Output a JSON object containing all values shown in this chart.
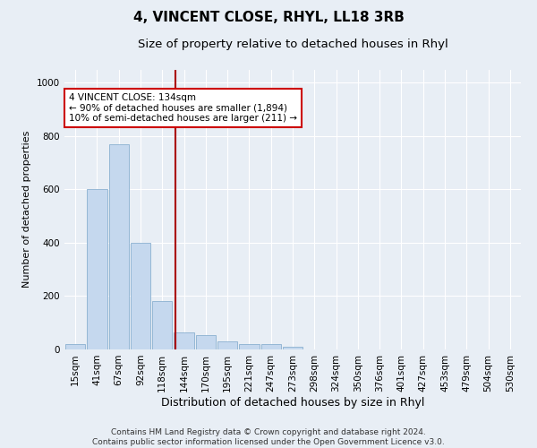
{
  "title": "4, VINCENT CLOSE, RHYL, LL18 3RB",
  "subtitle": "Size of property relative to detached houses in Rhyl",
  "xlabel": "Distribution of detached houses by size in Rhyl",
  "ylabel": "Number of detached properties",
  "categories": [
    "15sqm",
    "41sqm",
    "67sqm",
    "92sqm",
    "118sqm",
    "144sqm",
    "170sqm",
    "195sqm",
    "221sqm",
    "247sqm",
    "273sqm",
    "298sqm",
    "324sqm",
    "350sqm",
    "376sqm",
    "401sqm",
    "427sqm",
    "453sqm",
    "479sqm",
    "504sqm",
    "530sqm"
  ],
  "values": [
    20,
    600,
    770,
    400,
    180,
    65,
    55,
    30,
    20,
    20,
    10,
    0,
    0,
    0,
    0,
    0,
    0,
    0,
    0,
    0,
    0
  ],
  "bar_color": "#c5d8ee",
  "bar_edge_color": "#8ab0d0",
  "vline_color": "#aa0000",
  "annotation_text": "4 VINCENT CLOSE: 134sqm\n← 90% of detached houses are smaller (1,894)\n10% of semi-detached houses are larger (211) →",
  "annotation_box_facecolor": "#ffffff",
  "annotation_box_edgecolor": "#cc0000",
  "ylim": [
    0,
    1050
  ],
  "yticks": [
    0,
    200,
    400,
    600,
    800,
    1000
  ],
  "bg_color": "#e8eef5",
  "title_fontsize": 11,
  "subtitle_fontsize": 9.5,
  "xlabel_fontsize": 9,
  "ylabel_fontsize": 8,
  "tick_fontsize": 7.5,
  "annot_fontsize": 7.5,
  "footer_text": "Contains HM Land Registry data © Crown copyright and database right 2024.\nContains public sector information licensed under the Open Government Licence v3.0.",
  "footer_fontsize": 6.5
}
